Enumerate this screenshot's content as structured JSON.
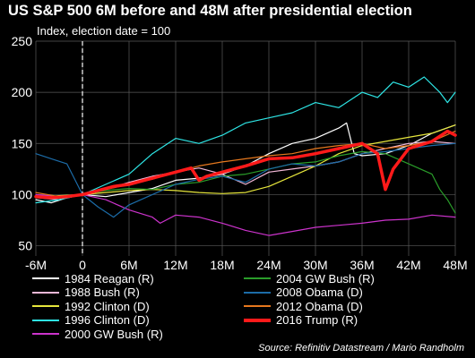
{
  "title": "US S&P 500 6M before and 48M after presidential election",
  "subtitle": "Index, election date = 100",
  "source": "Source: Refinitiv Datastream / Mario Randholm",
  "chart_data": {
    "type": "line",
    "x_ticks": [
      "-6M",
      "0",
      "6M",
      "12M",
      "18M",
      "24M",
      "30M",
      "36M",
      "42M",
      "48M"
    ],
    "y_ticks": [
      "50",
      "100",
      "150",
      "200",
      "250"
    ],
    "xlim": [
      -6,
      48
    ],
    "ylim": [
      40,
      250
    ],
    "election_marker_x": 0,
    "grid": true,
    "series": [
      {
        "name": "1984 Reagan (R)",
        "color": "#ffffff",
        "width": 1.2,
        "x": [
          -6,
          -4,
          -2,
          0,
          3,
          6,
          9,
          12,
          15,
          18,
          21,
          24,
          27,
          30,
          33,
          34,
          35,
          36,
          39,
          42,
          45,
          48
        ],
        "y": [
          95,
          92,
          97,
          100,
          98,
          102,
          106,
          114,
          116,
          120,
          128,
          140,
          150,
          155,
          165,
          170,
          140,
          138,
          140,
          148,
          160,
          168
        ]
      },
      {
        "name": "1988 Bush (R)",
        "color": "#f2b8d8",
        "width": 1.2,
        "x": [
          -6,
          -3,
          0,
          3,
          6,
          9,
          12,
          15,
          18,
          21,
          24,
          27,
          30,
          33,
          36,
          39,
          42,
          45,
          48
        ],
        "y": [
          97,
          95,
          100,
          105,
          112,
          118,
          122,
          126,
          120,
          110,
          122,
          125,
          128,
          132,
          140,
          145,
          150,
          152,
          150
        ]
      },
      {
        "name": "1992 Clinton (D)",
        "color": "#e6e63c",
        "width": 1.2,
        "x": [
          -6,
          -3,
          0,
          3,
          6,
          9,
          12,
          15,
          18,
          21,
          24,
          27,
          30,
          33,
          36,
          39,
          42,
          45,
          48
        ],
        "y": [
          97,
          99,
          100,
          102,
          104,
          105,
          104,
          102,
          101,
          102,
          108,
          118,
          128,
          140,
          148,
          152,
          156,
          160,
          168
        ]
      },
      {
        "name": "1996 Clinton (D)",
        "color": "#2ee6e6",
        "width": 1.2,
        "x": [
          -6,
          -3,
          0,
          3,
          6,
          9,
          12,
          15,
          18,
          21,
          24,
          27,
          30,
          33,
          36,
          38,
          40,
          42,
          44,
          46,
          47,
          48
        ],
        "y": [
          92,
          95,
          100,
          110,
          120,
          140,
          155,
          150,
          158,
          170,
          175,
          180,
          190,
          185,
          200,
          195,
          210,
          205,
          215,
          200,
          190,
          200
        ]
      },
      {
        "name": "2000 GW Bush (R)",
        "color": "#cc33cc",
        "width": 1.2,
        "x": [
          -6,
          -3,
          0,
          3,
          6,
          9,
          10,
          12,
          15,
          18,
          21,
          24,
          27,
          30,
          33,
          36,
          39,
          42,
          45,
          48
        ],
        "y": [
          100,
          98,
          100,
          95,
          85,
          78,
          72,
          80,
          78,
          72,
          65,
          60,
          64,
          68,
          70,
          72,
          75,
          76,
          80,
          78
        ]
      },
      {
        "name": "2004 GW Bush (R)",
        "color": "#2a9d2a",
        "width": 1.2,
        "x": [
          -6,
          -3,
          0,
          3,
          6,
          9,
          12,
          15,
          18,
          21,
          24,
          27,
          30,
          33,
          36,
          39,
          42,
          45,
          46,
          47,
          48
        ],
        "y": [
          98,
          97,
          100,
          104,
          106,
          105,
          110,
          112,
          118,
          120,
          125,
          130,
          132,
          138,
          142,
          140,
          130,
          120,
          105,
          95,
          82
        ]
      },
      {
        "name": "2008 Obama (D)",
        "color": "#1c6ca8",
        "width": 1.2,
        "x": [
          -6,
          -4,
          -2,
          0,
          2,
          4,
          6,
          9,
          12,
          15,
          18,
          21,
          24,
          27,
          30,
          33,
          36,
          39,
          42,
          45,
          48
        ],
        "y": [
          140,
          135,
          130,
          100,
          88,
          78,
          90,
          100,
          110,
          115,
          118,
          112,
          125,
          130,
          128,
          132,
          140,
          142,
          145,
          148,
          150
        ]
      },
      {
        "name": "2012 Obama (D)",
        "color": "#e6781e",
        "width": 1.2,
        "x": [
          -6,
          -3,
          0,
          3,
          6,
          9,
          12,
          15,
          18,
          21,
          24,
          27,
          30,
          33,
          36,
          39,
          42,
          45,
          48
        ],
        "y": [
          102,
          98,
          100,
          105,
          110,
          115,
          122,
          128,
          132,
          135,
          138,
          140,
          145,
          148,
          150,
          145,
          148,
          152,
          162
        ]
      },
      {
        "name": "2016 Trump (R)",
        "color": "#ff1a1a",
        "width": 3.5,
        "x": [
          -6,
          -4,
          -2,
          0,
          2,
          4,
          6,
          9,
          12,
          14,
          15,
          16,
          18,
          21,
          24,
          27,
          30,
          33,
          36,
          38,
          39,
          40,
          42,
          45,
          47,
          48
        ],
        "y": [
          98,
          97,
          98,
          100,
          104,
          108,
          110,
          116,
          122,
          126,
          114,
          118,
          122,
          128,
          135,
          136,
          140,
          145,
          150,
          140,
          105,
          125,
          145,
          152,
          162,
          158
        ]
      }
    ]
  }
}
